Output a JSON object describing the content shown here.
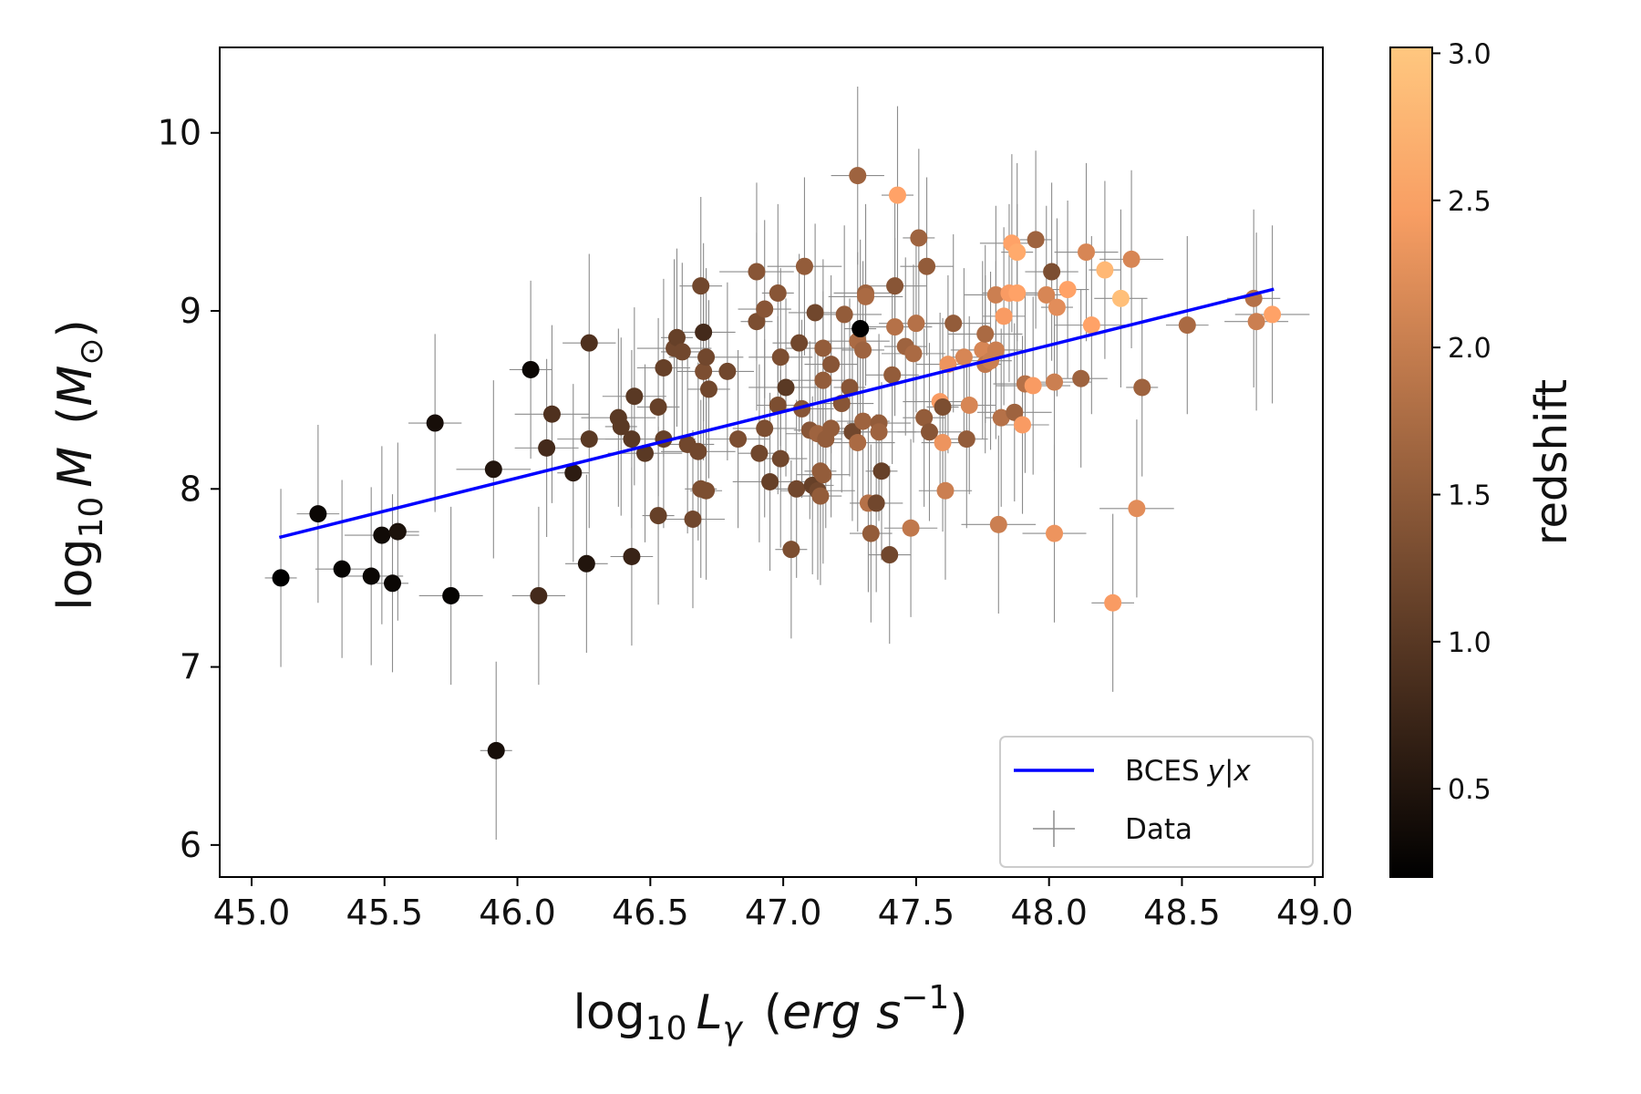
{
  "chart_data": {
    "type": "scatter",
    "xlabel": {
      "pre": "log",
      "sub": "10",
      "var": "L",
      "var_sub": "γ",
      "units_pre": "(",
      "units": "erg s",
      "units_sup": "−1",
      "units_post": ")"
    },
    "ylabel": {
      "pre": "log",
      "sub": "10",
      "var": "M",
      "units_pre": "(",
      "units": "M",
      "units_sub": "⊙",
      "units_post": ")"
    },
    "xlim": [
      44.88,
      49.03
    ],
    "ylim": [
      5.82,
      10.48
    ],
    "xticks": [
      45.0,
      45.5,
      46.0,
      46.5,
      47.0,
      47.5,
      48.0,
      48.5,
      49.0
    ],
    "xtick_labels": [
      "45.0",
      "45.5",
      "46.0",
      "46.5",
      "47.0",
      "47.5",
      "48.0",
      "48.5",
      "49.0"
    ],
    "yticks": [
      6,
      7,
      8,
      9,
      10
    ],
    "ytick_labels": [
      "6",
      "7",
      "8",
      "9",
      "10"
    ],
    "colorbar": {
      "label": "redshift",
      "range": [
        0.2,
        3.02
      ],
      "ticks": [
        0.5,
        1.0,
        1.5,
        2.0,
        2.5,
        3.0
      ],
      "tick_labels": [
        "0.5",
        "1.0",
        "1.5",
        "2.0",
        "2.5",
        "3.0"
      ]
    },
    "fit_line": {
      "name": "BCES y|x",
      "label_text": "BCES",
      "label_italic": "y|x",
      "x": [
        45.11,
        48.84
      ],
      "y": [
        7.73,
        9.12
      ],
      "color": "#0000ff"
    },
    "legend": {
      "position": "lower-right",
      "entries": [
        "BCES y|x",
        "Data"
      ],
      "data_label": "Data"
    },
    "colors": {
      "errorbar": "#8c8c8c",
      "axis": "#000000"
    },
    "series": [
      {
        "name": "Data",
        "points": [
          [
            45.11,
            7.5,
            0.2,
            0.5
          ],
          [
            45.25,
            7.86,
            0.3,
            0.5
          ],
          [
            45.34,
            7.55,
            0.25,
            0.5
          ],
          [
            45.45,
            7.51,
            0.3,
            0.5
          ],
          [
            45.49,
            7.74,
            0.35,
            0.5
          ],
          [
            45.53,
            7.47,
            0.3,
            0.5
          ],
          [
            45.55,
            7.76,
            0.45,
            0.5
          ],
          [
            45.69,
            8.37,
            0.4,
            0.5
          ],
          [
            45.75,
            7.4,
            0.25,
            0.5
          ],
          [
            45.91,
            8.11,
            0.5,
            0.5
          ],
          [
            45.92,
            6.53,
            0.4,
            0.5
          ],
          [
            46.05,
            8.67,
            0.3,
            0.5
          ],
          [
            46.08,
            7.4,
            0.8,
            0.5
          ],
          [
            46.11,
            8.23,
            0.8,
            0.5
          ],
          [
            46.13,
            8.42,
            0.9,
            0.5
          ],
          [
            46.21,
            8.09,
            0.6,
            0.5
          ],
          [
            46.26,
            7.58,
            0.5,
            0.5
          ],
          [
            46.27,
            8.82,
            0.9,
            0.5
          ],
          [
            46.27,
            8.28,
            1.0,
            0.5
          ],
          [
            46.38,
            8.4,
            1.0,
            0.5
          ],
          [
            46.39,
            8.35,
            1.0,
            0.5
          ],
          [
            46.43,
            7.62,
            0.7,
            0.5
          ],
          [
            46.43,
            8.28,
            1.0,
            0.5
          ],
          [
            46.44,
            8.52,
            1.0,
            0.5
          ],
          [
            46.48,
            8.2,
            1.0,
            0.5
          ],
          [
            46.53,
            7.85,
            1.1,
            0.5
          ],
          [
            46.53,
            8.46,
            1.1,
            0.5
          ],
          [
            46.55,
            8.68,
            1.1,
            0.5
          ],
          [
            46.55,
            8.28,
            1.1,
            0.5
          ],
          [
            46.59,
            8.79,
            1.2,
            0.5
          ],
          [
            46.6,
            8.85,
            1.1,
            0.5
          ],
          [
            46.62,
            8.77,
            1.2,
            0.5
          ],
          [
            46.64,
            8.25,
            1.2,
            0.5
          ],
          [
            46.66,
            7.83,
            1.2,
            0.5
          ],
          [
            46.68,
            8.21,
            1.2,
            0.5
          ],
          [
            46.69,
            8.0,
            1.3,
            0.5
          ],
          [
            46.69,
            9.14,
            1.2,
            0.5
          ],
          [
            46.7,
            8.66,
            1.3,
            0.5
          ],
          [
            46.7,
            8.88,
            0.8,
            0.5
          ],
          [
            46.71,
            8.74,
            1.2,
            0.5
          ],
          [
            46.71,
            7.99,
            1.3,
            0.5
          ],
          [
            46.72,
            8.56,
            1.2,
            0.5
          ],
          [
            46.79,
            8.66,
            1.2,
            0.5
          ],
          [
            46.83,
            8.28,
            1.3,
            0.5
          ],
          [
            46.9,
            9.22,
            1.4,
            0.5
          ],
          [
            46.9,
            8.94,
            1.3,
            0.5
          ],
          [
            46.91,
            8.2,
            1.2,
            0.5
          ],
          [
            46.93,
            9.01,
            1.4,
            0.5
          ],
          [
            46.93,
            8.34,
            1.3,
            0.5
          ],
          [
            46.95,
            8.04,
            1.1,
            0.5
          ],
          [
            46.98,
            9.1,
            1.4,
            0.5
          ],
          [
            46.98,
            8.47,
            1.3,
            0.5
          ],
          [
            46.99,
            8.17,
            1.2,
            0.5
          ],
          [
            46.99,
            8.74,
            1.3,
            0.5
          ],
          [
            47.01,
            8.57,
            1.0,
            0.5
          ],
          [
            47.03,
            7.66,
            1.3,
            0.5
          ],
          [
            47.05,
            8.0,
            1.2,
            0.5
          ],
          [
            47.06,
            8.82,
            1.2,
            0.5
          ],
          [
            47.07,
            8.45,
            1.4,
            0.5
          ],
          [
            47.08,
            9.25,
            1.5,
            0.5
          ],
          [
            47.1,
            8.33,
            1.4,
            0.5
          ],
          [
            47.11,
            8.02,
            1.1,
            0.5
          ],
          [
            47.12,
            8.99,
            1.2,
            0.5
          ],
          [
            47.13,
            8.31,
            1.6,
            0.5
          ],
          [
            47.13,
            7.99,
            1.2,
            0.5
          ],
          [
            47.14,
            8.1,
            1.5,
            0.5
          ],
          [
            47.14,
            7.96,
            1.5,
            0.5
          ],
          [
            47.15,
            8.08,
            1.5,
            0.5
          ],
          [
            47.15,
            8.61,
            1.5,
            0.5
          ],
          [
            47.15,
            8.79,
            1.5,
            0.5
          ],
          [
            47.16,
            8.28,
            1.5,
            0.5
          ],
          [
            47.18,
            8.34,
            1.5,
            0.5
          ],
          [
            47.18,
            8.7,
            1.4,
            0.5
          ],
          [
            47.22,
            8.48,
            1.4,
            0.5
          ],
          [
            47.23,
            8.98,
            1.5,
            0.5
          ],
          [
            47.25,
            8.57,
            1.4,
            0.5
          ],
          [
            47.26,
            8.32,
            1.2,
            0.5
          ],
          [
            47.28,
            9.76,
            1.6,
            0.5
          ],
          [
            47.28,
            8.83,
            1.7,
            0.5
          ],
          [
            47.28,
            8.26,
            1.7,
            0.5
          ],
          [
            47.29,
            8.9,
            0.2,
            0.5
          ],
          [
            47.3,
            8.78,
            1.6,
            0.5
          ],
          [
            47.3,
            8.38,
            1.6,
            0.5
          ],
          [
            47.31,
            9.1,
            1.6,
            0.5
          ],
          [
            47.31,
            9.08,
            1.7,
            0.5
          ],
          [
            47.32,
            7.92,
            1.8,
            0.5
          ],
          [
            47.33,
            7.75,
            1.5,
            0.5
          ],
          [
            47.35,
            7.92,
            1.2,
            0.5
          ],
          [
            47.36,
            8.37,
            1.5,
            0.5
          ],
          [
            47.36,
            8.32,
            1.6,
            0.5
          ],
          [
            47.37,
            8.1,
            1.1,
            0.5
          ],
          [
            47.4,
            7.63,
            1.2,
            0.5
          ],
          [
            47.41,
            8.64,
            1.5,
            0.5
          ],
          [
            47.42,
            9.14,
            1.4,
            0.5
          ],
          [
            47.42,
            8.91,
            1.8,
            0.5
          ],
          [
            47.43,
            9.65,
            2.5,
            0.5
          ],
          [
            47.46,
            8.8,
            1.6,
            0.5
          ],
          [
            47.48,
            7.78,
            1.9,
            0.5
          ],
          [
            47.49,
            8.76,
            1.7,
            0.5
          ],
          [
            47.5,
            8.93,
            1.8,
            0.5
          ],
          [
            47.51,
            9.41,
            1.6,
            0.5
          ],
          [
            47.53,
            8.4,
            1.5,
            0.5
          ],
          [
            47.54,
            9.25,
            1.5,
            0.5
          ],
          [
            47.55,
            8.32,
            1.4,
            0.5
          ],
          [
            47.59,
            8.49,
            2.4,
            0.5
          ],
          [
            47.6,
            8.46,
            1.3,
            0.5
          ],
          [
            47.6,
            8.26,
            2.3,
            0.5
          ],
          [
            47.61,
            7.99,
            2.0,
            0.5
          ],
          [
            47.62,
            8.7,
            2.3,
            0.5
          ],
          [
            47.64,
            8.93,
            1.5,
            0.5
          ],
          [
            47.68,
            8.74,
            2.1,
            0.5
          ],
          [
            47.69,
            8.28,
            1.5,
            0.5
          ],
          [
            47.7,
            8.47,
            2.1,
            0.5
          ],
          [
            47.75,
            8.78,
            2.1,
            0.5
          ],
          [
            47.76,
            8.87,
            1.7,
            0.5
          ],
          [
            47.76,
            8.7,
            1.9,
            0.5
          ],
          [
            47.78,
            8.72,
            2.0,
            0.5
          ],
          [
            47.8,
            8.78,
            2.0,
            0.5
          ],
          [
            47.8,
            9.09,
            2.0,
            0.5
          ],
          [
            47.81,
            7.8,
            2.0,
            0.5
          ],
          [
            47.82,
            8.4,
            1.8,
            0.5
          ],
          [
            47.83,
            8.97,
            2.4,
            0.5
          ],
          [
            47.85,
            9.1,
            2.4,
            0.5
          ],
          [
            47.86,
            9.38,
            2.5,
            0.5
          ],
          [
            47.87,
            8.43,
            1.6,
            0.5
          ],
          [
            47.88,
            9.33,
            2.6,
            0.5
          ],
          [
            47.88,
            9.1,
            2.5,
            0.5
          ],
          [
            47.9,
            8.36,
            2.4,
            0.5
          ],
          [
            47.91,
            8.59,
            1.8,
            0.5
          ],
          [
            47.94,
            8.58,
            2.4,
            0.5
          ],
          [
            47.95,
            9.4,
            1.6,
            0.5
          ],
          [
            47.99,
            9.09,
            2.1,
            0.5
          ],
          [
            48.01,
            9.22,
            1.3,
            0.5
          ],
          [
            48.02,
            7.75,
            2.3,
            0.5
          ],
          [
            48.02,
            8.6,
            2.0,
            0.5
          ],
          [
            48.03,
            9.02,
            2.2,
            0.5
          ],
          [
            48.07,
            9.12,
            2.5,
            0.5
          ],
          [
            48.12,
            8.62,
            1.6,
            0.5
          ],
          [
            48.14,
            9.33,
            2.1,
            0.5
          ],
          [
            48.16,
            8.92,
            2.5,
            0.5
          ],
          [
            48.21,
            9.23,
            2.8,
            0.5
          ],
          [
            48.24,
            7.36,
            2.4,
            0.5
          ],
          [
            48.27,
            9.07,
            2.9,
            0.5
          ],
          [
            48.31,
            9.29,
            2.1,
            0.5
          ],
          [
            48.33,
            7.89,
            2.2,
            0.5
          ],
          [
            48.35,
            8.57,
            1.6,
            0.5
          ],
          [
            48.52,
            8.92,
            1.7,
            0.5
          ],
          [
            48.77,
            9.07,
            1.8,
            0.5
          ],
          [
            48.78,
            8.94,
            2.0,
            0.5
          ],
          [
            48.84,
            8.98,
            2.5,
            0.5
          ]
        ]
      }
    ]
  }
}
